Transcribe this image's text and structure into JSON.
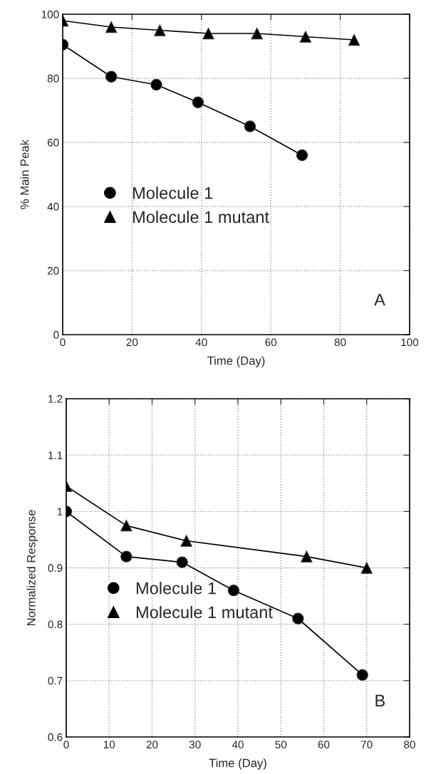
{
  "chart_data": [
    {
      "type": "line",
      "xlabel": "Time (Day)",
      "ylabel": "% Main Peak",
      "xlim": [
        0,
        100
      ],
      "ylim": [
        0,
        100
      ],
      "xticks": [
        0,
        20,
        40,
        60,
        80,
        100
      ],
      "yticks": [
        0,
        20,
        40,
        60,
        80,
        100
      ],
      "grid": true,
      "legend": "left",
      "annotations": [
        "A"
      ],
      "series": [
        {
          "name": "Molecule 1",
          "color": "#000000",
          "marker": "circle",
          "x": [
            0,
            14,
            27,
            39,
            54,
            69
          ],
          "values": [
            90.5,
            80.5,
            78,
            72.5,
            65,
            56
          ]
        },
        {
          "name": "Molecule 1 mutant",
          "color": "#000000",
          "marker": "triangle",
          "x": [
            0,
            14,
            28,
            42,
            56,
            70,
            84
          ],
          "values": [
            98,
            96,
            95,
            94,
            94,
            93,
            92
          ]
        }
      ]
    },
    {
      "type": "line",
      "xlabel": "Time (Day)",
      "ylabel": "Normalized Response",
      "xlim": [
        0,
        80
      ],
      "ylim": [
        0.6,
        1.2
      ],
      "xticks": [
        0,
        10,
        20,
        30,
        40,
        50,
        60,
        70,
        80
      ],
      "yticks": [
        0.6,
        0.7,
        0.8,
        0.9,
        1,
        1.1,
        1.2
      ],
      "grid": true,
      "legend": "left",
      "annotations": [
        "B"
      ],
      "series": [
        {
          "name": "Molecule 1",
          "color": "#000000",
          "marker": "circle",
          "x": [
            0,
            14,
            27,
            39,
            54,
            69
          ],
          "values": [
            1.0,
            0.92,
            0.91,
            0.86,
            0.81,
            0.71
          ]
        },
        {
          "name": "Molecule 1 mutant",
          "color": "#000000",
          "marker": "triangle",
          "x": [
            0,
            14,
            28,
            56,
            70
          ],
          "values": [
            1.045,
            0.975,
            0.948,
            0.92,
            0.9
          ]
        }
      ]
    }
  ]
}
